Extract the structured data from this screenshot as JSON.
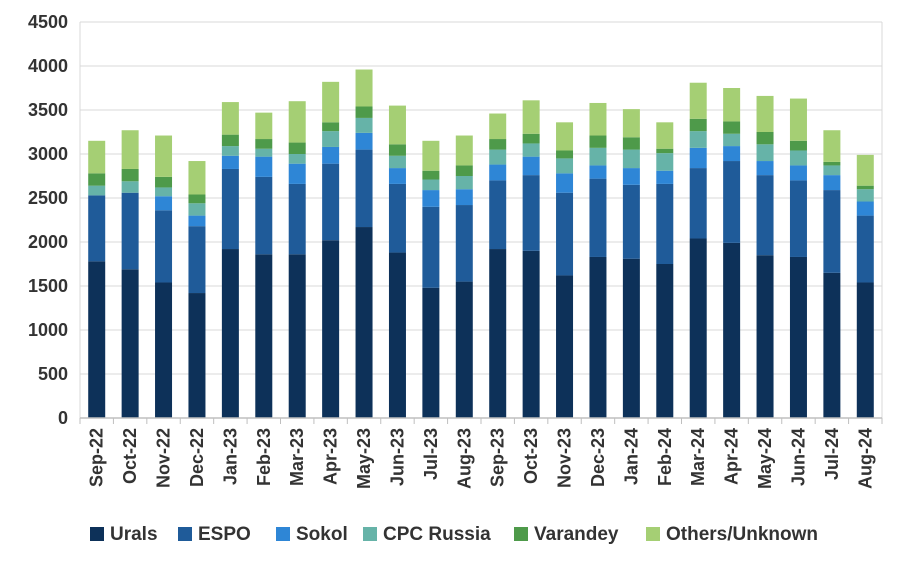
{
  "chart_data": {
    "type": "bar",
    "stacked": true,
    "title": "",
    "xlabel": "",
    "ylabel": "",
    "ylim": [
      0,
      4500
    ],
    "yticks": [
      0,
      500,
      1000,
      1500,
      2000,
      2500,
      3000,
      3500,
      4000,
      4500
    ],
    "grid": true,
    "legend_position": "bottom",
    "categories": [
      "Sep-22",
      "Oct-22",
      "Nov-22",
      "Dec-22",
      "Jan-23",
      "Feb-23",
      "Mar-23",
      "Apr-23",
      "May-23",
      "Jun-23",
      "Jul-23",
      "Aug-23",
      "Sep-23",
      "Oct-23",
      "Nov-23",
      "Dec-23",
      "Jan-24",
      "Feb-24",
      "Mar-24",
      "Apr-24",
      "May-24",
      "Jun-24",
      "Jul-24",
      "Aug-24"
    ],
    "series": [
      {
        "name": "Urals",
        "color": "#0d3159",
        "values": [
          1780,
          1690,
          1540,
          1420,
          1920,
          1860,
          1860,
          2020,
          2170,
          1880,
          1480,
          1550,
          1920,
          1900,
          1620,
          1830,
          1810,
          1750,
          2040,
          1990,
          1850,
          1830,
          1650,
          1540
        ]
      },
      {
        "name": "ESPO",
        "color": "#1f5b99",
        "values": [
          750,
          870,
          820,
          760,
          910,
          880,
          800,
          870,
          880,
          780,
          920,
          870,
          780,
          860,
          940,
          890,
          840,
          910,
          800,
          930,
          910,
          870,
          940,
          760
        ]
      },
      {
        "name": "Sokol",
        "color": "#2e86d6",
        "values": [
          0,
          0,
          160,
          120,
          150,
          230,
          230,
          190,
          190,
          180,
          190,
          180,
          180,
          210,
          220,
          150,
          190,
          150,
          230,
          170,
          160,
          170,
          170,
          160
        ]
      },
      {
        "name": "CPC Russia",
        "color": "#66b3a8",
        "values": [
          110,
          130,
          100,
          140,
          110,
          90,
          110,
          180,
          170,
          140,
          120,
          150,
          170,
          150,
          170,
          200,
          210,
          200,
          190,
          140,
          190,
          170,
          110,
          140
        ]
      },
      {
        "name": "Varandey",
        "color": "#4e9a4a",
        "values": [
          140,
          140,
          120,
          100,
          130,
          110,
          130,
          100,
          130,
          130,
          100,
          120,
          120,
          110,
          90,
          140,
          140,
          50,
          140,
          140,
          140,
          110,
          40,
          40
        ]
      },
      {
        "name": "Others/Unknown",
        "color": "#a5cf74",
        "values": [
          370,
          440,
          470,
          380,
          370,
          300,
          470,
          460,
          420,
          440,
          340,
          340,
          290,
          380,
          320,
          370,
          320,
          300,
          410,
          380,
          410,
          480,
          360,
          350
        ]
      }
    ]
  },
  "colors": {
    "gridline": "#d9d9d9",
    "axis": "#bfbfbf",
    "text": "#333333"
  }
}
